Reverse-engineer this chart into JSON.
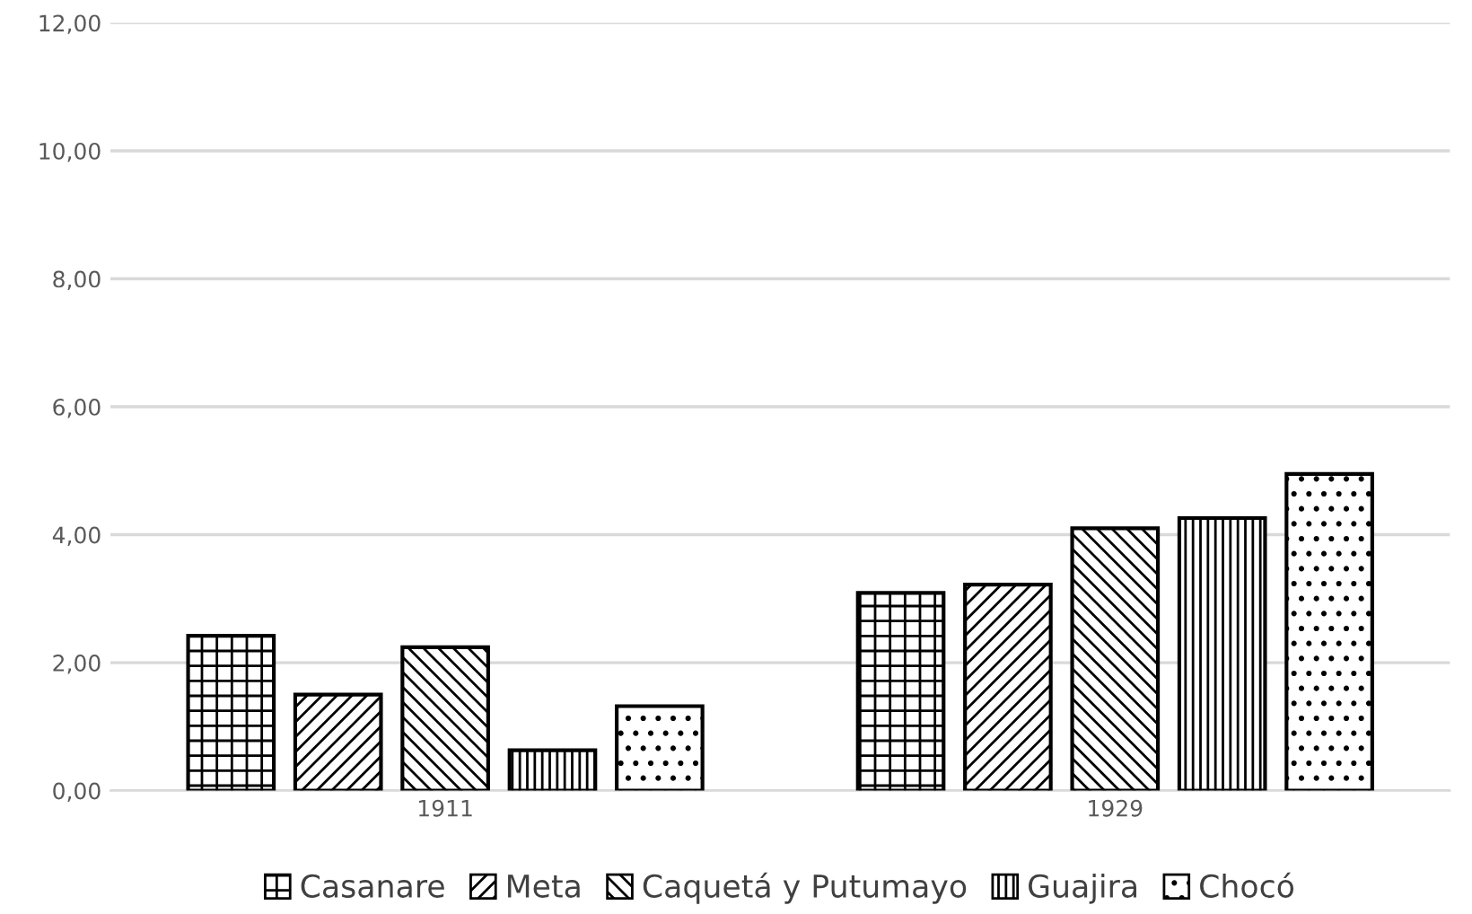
{
  "chart_data": {
    "type": "bar",
    "categories": [
      "1911",
      "1929"
    ],
    "series": [
      {
        "name": "Casanare",
        "color": "#000000",
        "values": [
          2.42,
          3.09
        ]
      },
      {
        "name": "Meta",
        "color": "#000000",
        "values": [
          1.5,
          3.22
        ]
      },
      {
        "name": "Caquetá y Putumayo",
        "color": "#000000",
        "values": [
          2.24,
          4.1
        ]
      },
      {
        "name": "Guajira",
        "color": "#000000",
        "values": [
          0.63,
          4.26
        ]
      },
      {
        "name": "Chocó",
        "color": "#000000",
        "values": [
          1.32,
          4.95
        ]
      }
    ],
    "ylim": [
      0,
      12
    ],
    "yticks": [
      {
        "value": 0,
        "label": "0,00"
      },
      {
        "value": 2,
        "label": "2,00"
      },
      {
        "value": 4,
        "label": "4,00"
      },
      {
        "value": 6,
        "label": "6,00"
      },
      {
        "value": 8,
        "label": "8,00"
      },
      {
        "value": 10,
        "label": "10,00"
      },
      {
        "value": 12,
        "label": "12,00"
      }
    ],
    "grid": "y",
    "legend": "bottom"
  }
}
